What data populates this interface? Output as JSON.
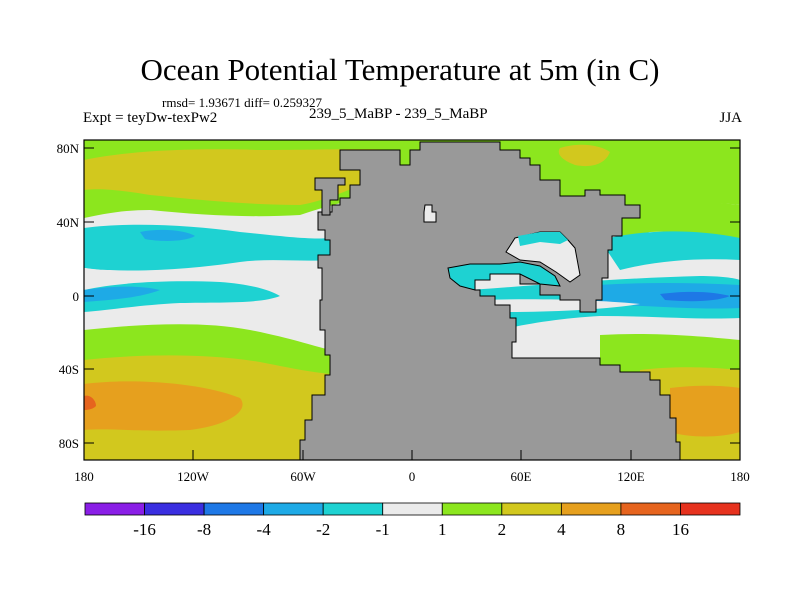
{
  "title": "Ocean Potential Temperature at 5m (in C)",
  "stats": "rmsd= 1.93671 diff= 0.259327",
  "expt": "Expt = teyDw-texPw2",
  "expt_names": "239_5_MaBP - 239_5_MaBP",
  "season": "JJA",
  "map": {
    "lat_ticks": [
      "80N",
      "40N",
      "0",
      "40S",
      "80S"
    ],
    "lon_ticks": [
      "180",
      "120W",
      "60W",
      "0",
      "60E",
      "120E",
      "180"
    ],
    "land_color": "#999999"
  },
  "colorbar": {
    "labels": [
      "-16",
      "-8",
      "-4",
      "-2",
      "-1",
      "1",
      "2",
      "4",
      "8",
      "16"
    ],
    "colors": [
      "#8a1ee6",
      "#3a2ee0",
      "#1e78e6",
      "#1eaae6",
      "#1ed2d2",
      "#ebebeb",
      "#8ce61e",
      "#d2c81e",
      "#e6a01e",
      "#e6641e",
      "#e6321e"
    ]
  }
}
